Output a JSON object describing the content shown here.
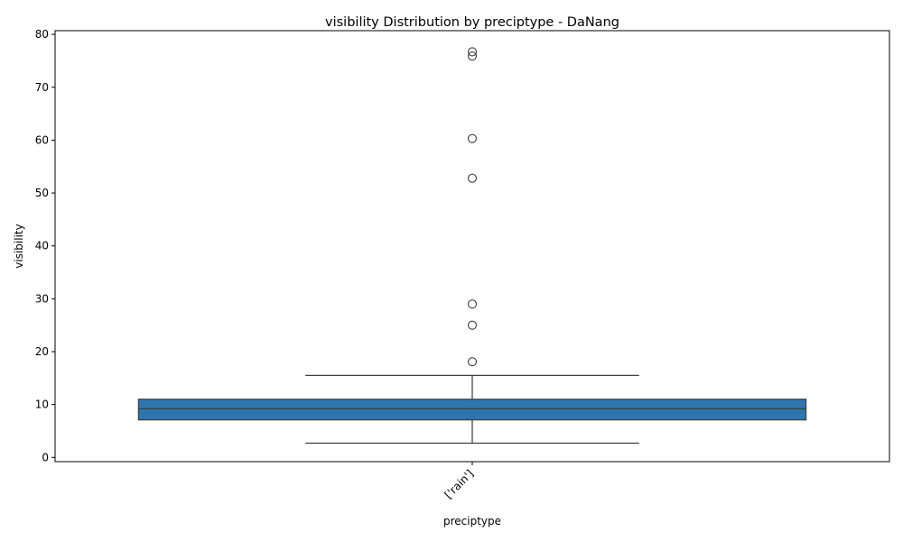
{
  "chart_data": {
    "type": "box",
    "title": "visibility Distribution by preciptype - DaNang",
    "xlabel": "preciptype",
    "ylabel": "visibility",
    "ylim": [
      -0.8,
      80.7
    ],
    "yticks": [
      0,
      10,
      20,
      30,
      40,
      50,
      60,
      70,
      80
    ],
    "grid": false,
    "categories": [
      "['rain']"
    ],
    "boxes": [
      {
        "category": "['rain']",
        "whisker_low": 2.7,
        "q1": 7.1,
        "median": 9.2,
        "q3": 11.0,
        "whisker_high": 15.5,
        "outliers": [
          18.1,
          25.0,
          29.0,
          52.8,
          60.3,
          75.9,
          76.7
        ]
      }
    ],
    "colors": {
      "box_fill": "#2e75b0",
      "line": "#3f3f3f",
      "axis": "#000000"
    }
  }
}
